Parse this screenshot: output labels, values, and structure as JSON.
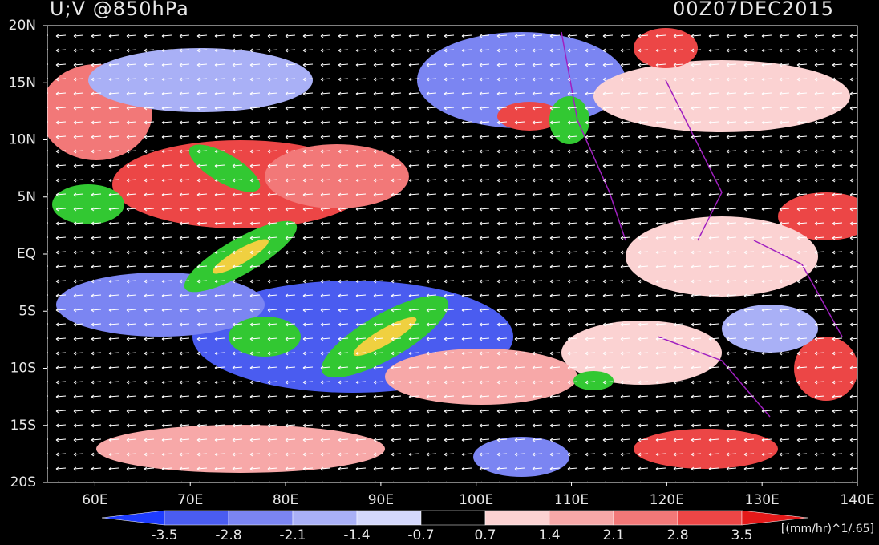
{
  "chart_data": {
    "type": "map",
    "title": "U;V @850hPa",
    "time": "00Z07DEC2015",
    "xlim": [
      55,
      140
    ],
    "xticks": [
      {
        "value": 60,
        "label": "60E"
      },
      {
        "value": 70,
        "label": "70E"
      },
      {
        "value": 80,
        "label": "80E"
      },
      {
        "value": 90,
        "label": "90E"
      },
      {
        "value": 100,
        "label": "100E"
      },
      {
        "value": 110,
        "label": "110E"
      },
      {
        "value": 120,
        "label": "120E"
      },
      {
        "value": 130,
        "label": "130E"
      },
      {
        "value": 140,
        "label": "140E"
      }
    ],
    "ylim": [
      -20,
      20
    ],
    "yticks": [
      {
        "value": -20,
        "label": "20S"
      },
      {
        "value": -15,
        "label": "15S"
      },
      {
        "value": -10,
        "label": "10S"
      },
      {
        "value": -5,
        "label": "5S"
      },
      {
        "value": 0,
        "label": "EQ"
      },
      {
        "value": 5,
        "label": "5N"
      },
      {
        "value": 10,
        "label": "10N"
      },
      {
        "value": 15,
        "label": "15N"
      },
      {
        "value": 20,
        "label": "20N"
      }
    ],
    "colorbar": {
      "levels": [
        -3.5,
        -2.8,
        -2.1,
        -1.4,
        -0.7,
        0.7,
        1.4,
        2.1,
        2.8,
        3.5
      ],
      "colors": [
        "#1e3cff",
        "#4a5cf0",
        "#7b85f2",
        "#a9b0f6",
        "#d4d8fb",
        "#000000",
        "#fbd2d2",
        "#f7a8a8",
        "#f27878",
        "#ec4646",
        "#e41a1a"
      ],
      "unit": "[(mm/hr)^1/.65]"
    }
  }
}
